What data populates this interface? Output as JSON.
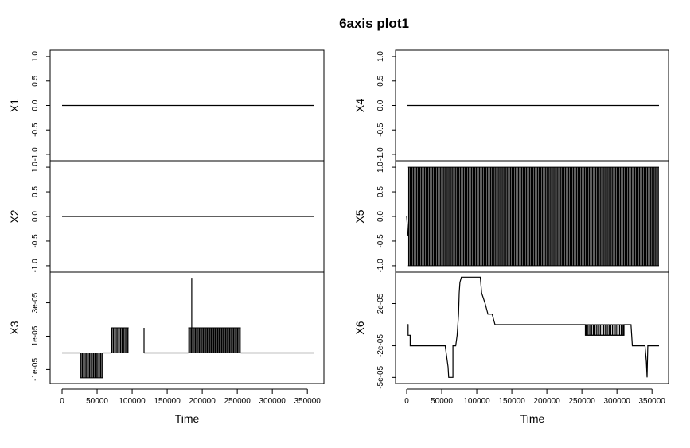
{
  "title": "6axis plot1",
  "xlabel": "Time",
  "xticks": [
    0,
    50000,
    100000,
    150000,
    200000,
    250000,
    300000,
    350000
  ],
  "xtick_labels": [
    "0",
    "50000",
    "100000",
    "150000",
    "200000",
    "250000",
    "300000",
    "350000"
  ],
  "chart_data": [
    {
      "type": "line",
      "ylabel": "X1",
      "ylim": [
        -1.05,
        1.05
      ],
      "yticks": [
        -1.0,
        -0.5,
        0.0,
        0.5,
        1.0
      ],
      "ytick_labels": [
        "-1.0",
        "-0.5",
        "0.0",
        "0.5",
        "1.0"
      ],
      "segments": [
        [
          [
            0,
            0
          ],
          [
            360000,
            0
          ]
        ]
      ],
      "bands": []
    },
    {
      "type": "line",
      "ylabel": "X2",
      "ylim": [
        -1.05,
        1.05
      ],
      "yticks": [
        -1.0,
        -0.5,
        0.0,
        0.5,
        1.0
      ],
      "ytick_labels": [
        "-1.0",
        "-0.5",
        "0.0",
        "0.5",
        "1.0"
      ],
      "segments": [
        [
          [
            0,
            0
          ],
          [
            360000,
            0
          ]
        ]
      ],
      "bands": []
    },
    {
      "type": "line",
      "ylabel": "X3",
      "ylim": [
        -1.6e-05,
        4.6e-05
      ],
      "yticks": [
        -1e-05,
        1e-05,
        3e-05
      ],
      "ytick_labels": [
        "-1e-05",
        "1e-05",
        "3e-05"
      ],
      "segments": [
        [
          [
            0,
            0
          ],
          [
            26000,
            0
          ]
        ],
        [
          [
            58000,
            0
          ],
          [
            70000,
            0
          ]
        ],
        [
          [
            117000,
            0
          ],
          [
            180000,
            0
          ]
        ],
        [
          [
            255000,
            0
          ],
          [
            360000,
            0
          ]
        ],
        [
          [
            185000,
            1.5e-05
          ],
          [
            185000,
            4.5e-05
          ]
        ],
        [
          [
            117000,
            0
          ],
          [
            117000,
            1.5e-05
          ]
        ]
      ],
      "bands": [
        {
          "x_start": 26000,
          "x_end": 58000,
          "y_low": -1.5e-05,
          "y_high": 0,
          "spikes": 16
        },
        {
          "x_start": 70000,
          "x_end": 95000,
          "y_low": 0,
          "y_high": 1.5e-05,
          "spikes": 12
        },
        {
          "x_start": 180000,
          "x_end": 255000,
          "y_low": 0,
          "y_high": 1.5e-05,
          "spikes": 40
        }
      ]
    },
    {
      "type": "line",
      "ylabel": "X4",
      "ylim": [
        -1.05,
        1.05
      ],
      "yticks": [
        -1.0,
        -0.5,
        0.0,
        0.5,
        1.0
      ],
      "ytick_labels": [
        "-1.0",
        "-0.5",
        "0.0",
        "0.5",
        "1.0"
      ],
      "segments": [
        [
          [
            0,
            0
          ],
          [
            360000,
            0
          ]
        ]
      ],
      "bands": []
    },
    {
      "type": "line",
      "ylabel": "X5",
      "ylim": [
        -1.05,
        1.05
      ],
      "yticks": [
        -1.0,
        -0.5,
        0.0,
        0.5,
        1.0
      ],
      "ytick_labels": [
        "-1.0",
        "-0.5",
        "0.0",
        "0.5",
        "1.0"
      ],
      "segments": [
        [
          [
            0,
            0
          ],
          [
            2000,
            -0.4
          ]
        ]
      ],
      "bands": [
        {
          "x_start": 2000,
          "x_end": 360000,
          "y_low": -1.0,
          "y_high": 1.0,
          "spikes": 160
        }
      ]
    },
    {
      "type": "line",
      "ylabel": "X6",
      "ylim": [
        -5.2e-05,
        4.6e-05
      ],
      "yticks": [
        -5e-05,
        -2e-05,
        2e-05
      ],
      "ytick_labels": [
        "-5e-05",
        "-2e-05",
        "2e-05"
      ],
      "segments": [
        [
          [
            0,
            0
          ],
          [
            2000,
            0
          ],
          [
            2000,
            -1e-05
          ],
          [
            5000,
            -1e-05
          ],
          [
            5000,
            -2e-05
          ],
          [
            55000,
            -2e-05
          ],
          [
            57000,
            -3e-05
          ],
          [
            59000,
            -4e-05
          ],
          [
            60000,
            -5e-05
          ],
          [
            66000,
            -5e-05
          ],
          [
            66000,
            -2e-05
          ],
          [
            70000,
            -2e-05
          ],
          [
            72000,
            -1e-05
          ],
          [
            74000,
            1e-05
          ],
          [
            75000,
            3e-05
          ],
          [
            76000,
            4e-05
          ],
          [
            78000,
            4.5e-05
          ],
          [
            105000,
            4.5e-05
          ],
          [
            107000,
            3e-05
          ],
          [
            112000,
            2e-05
          ],
          [
            116000,
            1e-05
          ],
          [
            122000,
            1e-05
          ],
          [
            126000,
            0
          ],
          [
            255000,
            0
          ],
          [
            255000,
            -1e-05
          ],
          [
            310000,
            -1e-05
          ],
          [
            310000,
            0
          ],
          [
            320000,
            0
          ],
          [
            322000,
            -2e-05
          ],
          [
            340000,
            -2e-05
          ],
          [
            342000,
            -3.5e-05
          ],
          [
            343000,
            -5e-05
          ],
          [
            344000,
            -2e-05
          ],
          [
            360000,
            -2e-05
          ]
        ]
      ],
      "bands": [
        {
          "x_start": 255000,
          "x_end": 310000,
          "y_low": -1e-05,
          "y_high": 0,
          "spikes": 22
        }
      ]
    }
  ]
}
